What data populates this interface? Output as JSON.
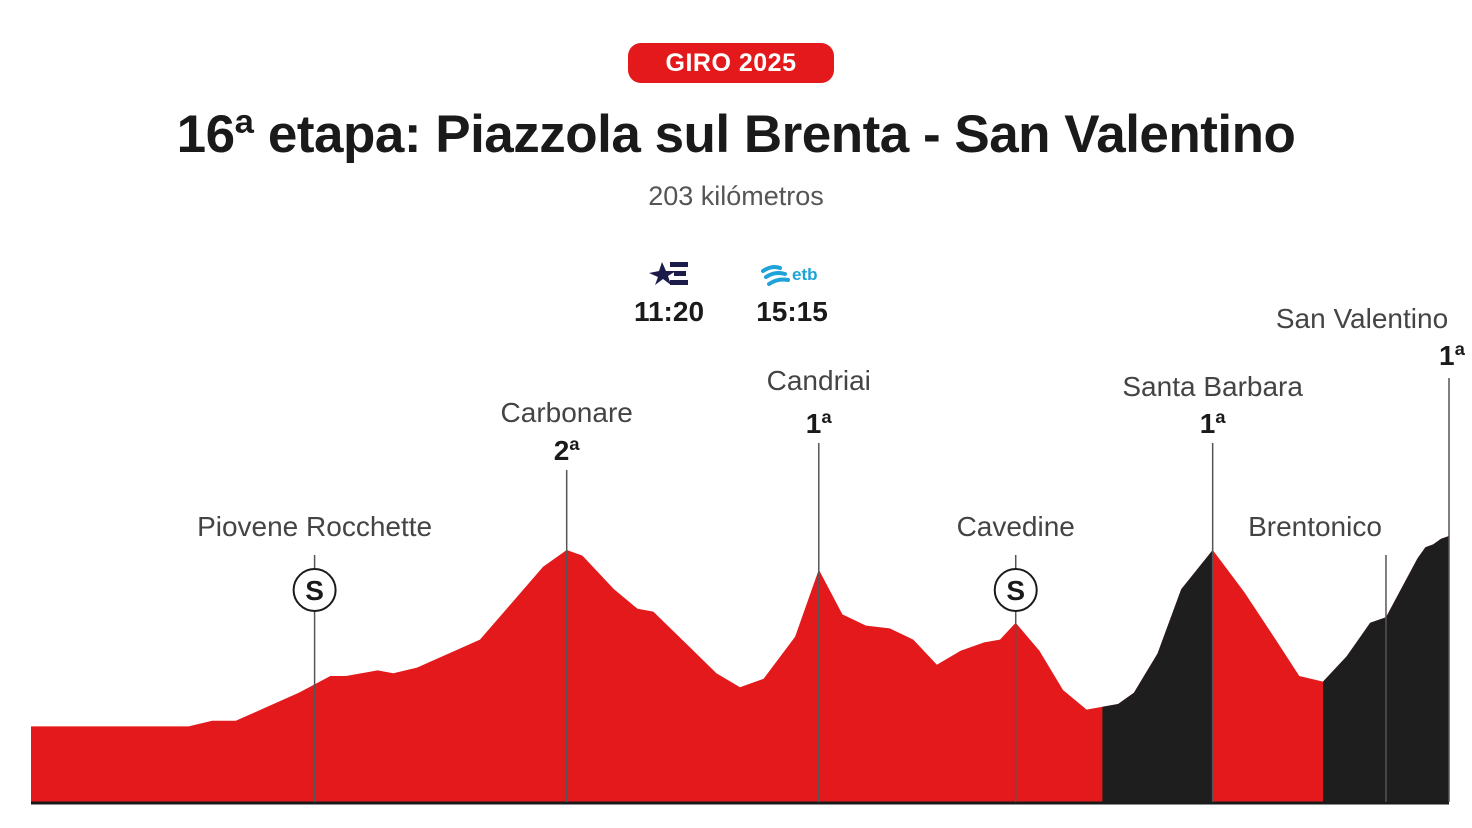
{
  "header": {
    "badge": "GIRO 2025",
    "title": "16ª etapa: Piazzola sul Brenta - San Valentino",
    "subtitle": "203 kilómetros"
  },
  "broadcasts": [
    {
      "logo": "eurosport-logo",
      "time": "11:20",
      "color": "#1c1c4a"
    },
    {
      "logo": "etb-logo",
      "time": "15:15",
      "color": "#1ea3d8",
      "text": "etb"
    }
  ],
  "colors": {
    "accent": "#e3191b",
    "climb_dark": "#1e1e1e",
    "baseline": "#1a1a1a"
  },
  "chart_data": {
    "type": "area",
    "profile": [
      [
        0,
        0.27
      ],
      [
        20,
        0.27
      ],
      [
        23,
        0.29
      ],
      [
        26,
        0.29
      ],
      [
        30,
        0.34
      ],
      [
        34,
        0.39
      ],
      [
        38,
        0.45
      ],
      [
        40,
        0.45
      ],
      [
        44,
        0.47
      ],
      [
        46,
        0.46
      ],
      [
        49,
        0.48
      ],
      [
        53,
        0.53
      ],
      [
        57,
        0.58
      ],
      [
        61,
        0.71
      ],
      [
        65,
        0.84
      ],
      [
        68,
        0.9
      ],
      [
        70,
        0.88
      ],
      [
        74,
        0.76
      ],
      [
        77,
        0.69
      ],
      [
        79,
        0.68
      ],
      [
        83,
        0.57
      ],
      [
        87,
        0.46
      ],
      [
        90,
        0.41
      ],
      [
        93,
        0.44
      ],
      [
        97,
        0.59
      ],
      [
        100,
        0.83
      ],
      [
        103,
        0.67
      ],
      [
        106,
        0.63
      ],
      [
        109,
        0.62
      ],
      [
        112,
        0.58
      ],
      [
        115,
        0.49
      ],
      [
        118,
        0.54
      ],
      [
        121,
        0.57
      ],
      [
        123,
        0.58
      ],
      [
        125,
        0.64
      ],
      [
        128,
        0.54
      ],
      [
        131,
        0.4
      ],
      [
        134,
        0.33
      ],
      [
        138,
        0.35
      ],
      [
        140,
        0.39
      ],
      [
        143,
        0.53
      ],
      [
        146,
        0.76
      ],
      [
        150,
        0.9
      ],
      [
        154,
        0.75
      ],
      [
        158,
        0.58
      ],
      [
        161,
        0.45
      ],
      [
        164,
        0.43
      ],
      [
        167,
        0.52
      ],
      [
        170,
        0.64
      ],
      [
        172,
        0.66
      ],
      [
        176,
        0.87
      ],
      [
        177,
        0.91
      ],
      [
        178,
        0.92
      ],
      [
        179,
        0.94
      ],
      [
        180,
        0.95
      ]
    ],
    "dark_segments": [
      [
        136,
        150
      ],
      [
        164,
        180
      ]
    ],
    "markers": [
      {
        "name": "Piovene Rocchette",
        "x": 36,
        "type": "sprint",
        "symbol": "S"
      },
      {
        "name": "Carbonare",
        "x": 68,
        "category": "2ª"
      },
      {
        "name": "Candriai",
        "x": 100,
        "category": "1ª"
      },
      {
        "name": "Cavedine",
        "x": 125,
        "type": "sprint",
        "symbol": "S"
      },
      {
        "name": "Santa Barbara",
        "x": 150,
        "category": "1ª"
      },
      {
        "name": "Brentonico",
        "x": 172
      },
      {
        "name": "San Valentino",
        "x": 180,
        "category": "1ª"
      }
    ]
  }
}
